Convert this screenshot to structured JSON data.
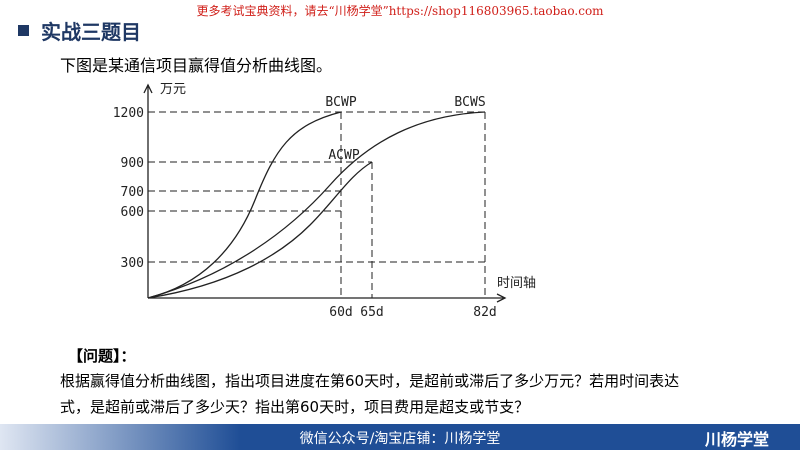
{
  "banner": "更多考试宝典资料，请去“川杨学堂”https://shop116803965.taobao.com",
  "header": {
    "title": "实战三题目"
  },
  "intro": "下图是某通信项目赢得值分析曲线图。",
  "figure": {
    "y_axis_label": "万元",
    "x_axis_label": "时间轴",
    "yticks": [
      300,
      600,
      700,
      900,
      1200
    ],
    "xticks": [
      {
        "value": 60,
        "label": "60d"
      },
      {
        "value": 65,
        "label": "65d"
      },
      {
        "value": 82,
        "label": "82d"
      }
    ],
    "curve_labels": [
      "BCWP",
      "BCWS",
      "ACWP"
    ]
  },
  "question": {
    "heading": "【问题】：",
    "lines": [
      "根据赢得值分析曲线图，指出项目进度在第60天时，是超前或滞后了多少万元？若用时间表达",
      "式，是超前或滞后了多少天？指出第60天时，项目费用是超支或节支？"
    ]
  },
  "footer": {
    "text": "微信公众号/淘宝店铺：川杨学堂",
    "logo": "川杨学堂"
  }
}
